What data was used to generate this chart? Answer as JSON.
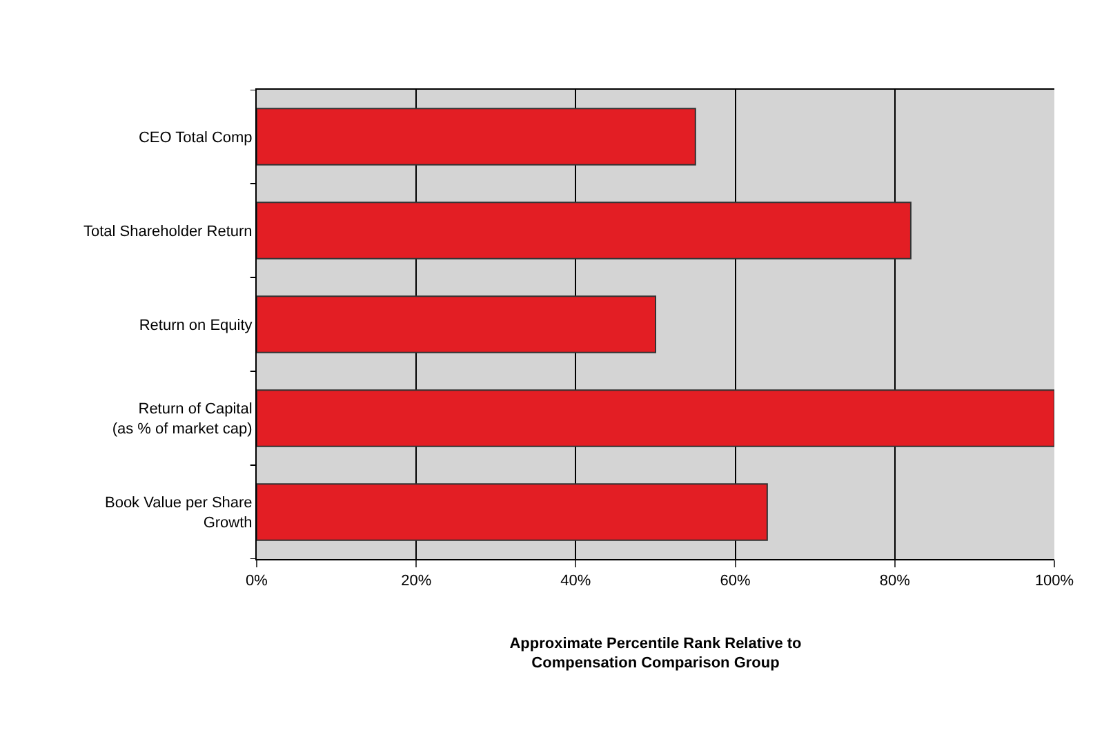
{
  "chart_data": {
    "type": "bar",
    "orientation": "horizontal",
    "categories": [
      "CEO Total Comp",
      "Total Shareholder Return",
      "Return on Equity",
      "Return of Capital\n(as % of market cap)",
      "Book Value per Share\nGrowth"
    ],
    "values": [
      55,
      82,
      50,
      100,
      64
    ],
    "color": "#e31e24",
    "xlim": [
      0,
      100
    ],
    "xticks": [
      {
        "value": 0,
        "label": "0%"
      },
      {
        "value": 20,
        "label": "20%"
      },
      {
        "value": 40,
        "label": "40%"
      },
      {
        "value": 60,
        "label": "60%"
      },
      {
        "value": 80,
        "label": "80%"
      },
      {
        "value": 100,
        "label": "100%"
      }
    ],
    "xlabel": "Approximate Percentile Rank Relative to\nCompensation Comparison Group",
    "grid": "x"
  }
}
